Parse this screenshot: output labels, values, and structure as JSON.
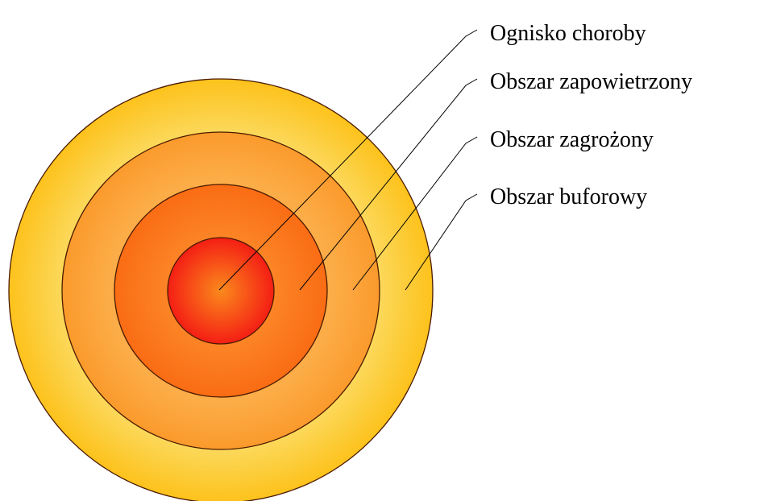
{
  "zones": [
    {
      "label": "Ognisko choroby"
    },
    {
      "label": "Obszar zapowietrzony"
    },
    {
      "label": "Obszar zagrożony"
    },
    {
      "label": "Obszar buforowy"
    }
  ]
}
